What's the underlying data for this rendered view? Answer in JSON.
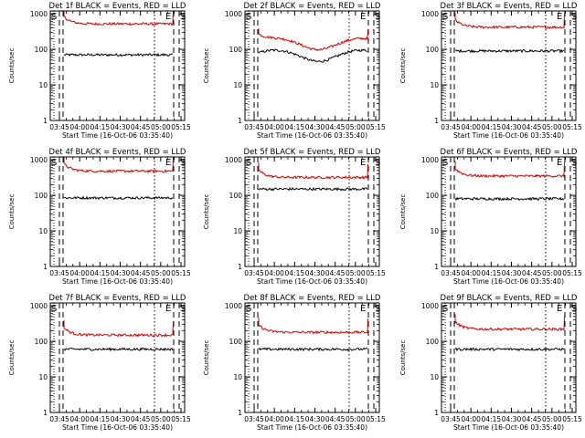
{
  "chart_data": [
    {
      "type": "line",
      "title": "Det 1f BLACK = Events, RED = LLD",
      "ylabel": "Counts/sec",
      "xlabel": "Start Time (16-Oct-06 03:35:40)",
      "x_ticks": [
        "03:45",
        "04:00",
        "04:15",
        "04:30",
        "04:45",
        "05:00",
        "05:15"
      ],
      "y_ticks": [
        "1",
        "10",
        "100",
        "1000"
      ],
      "ylim": [
        1,
        1200
      ],
      "yscale": "log",
      "markers": {
        "S": "S",
        "E": "E"
      },
      "series": [
        {
          "color": "#000000",
          "level": 70,
          "shape": "flat"
        },
        {
          "color": "#cc0000",
          "level": 520,
          "shape": "flat"
        }
      ]
    },
    {
      "type": "line",
      "title": "Det 2f BLACK = Events, RED = LLD",
      "ylabel": "Counts/sec",
      "xlabel": "Start Time (16-Oct-06 03:35:40)",
      "x_ticks": [
        "03:45",
        "04:00",
        "04:15",
        "04:30",
        "04:45",
        "05:00",
        "05:15"
      ],
      "y_ticks": [
        "1",
        "10",
        "100",
        "1000"
      ],
      "ylim": [
        1,
        1200
      ],
      "yscale": "log",
      "markers": {
        "S": "S",
        "E": "E"
      },
      "series": [
        {
          "color": "#000000",
          "level": 70,
          "shape": "wave"
        },
        {
          "color": "#cc0000",
          "level": 150,
          "shape": "wave"
        }
      ]
    },
    {
      "type": "line",
      "title": "Det 3f BLACK = Events, RED = LLD",
      "ylabel": "Counts/sec",
      "xlabel": "Start Time (16-Oct-06 03:35:40)",
      "x_ticks": [
        "03:45",
        "04:00",
        "04:15",
        "04:30",
        "04:45",
        "05:00",
        "05:15"
      ],
      "y_ticks": [
        "1",
        "10",
        "100",
        "1000"
      ],
      "ylim": [
        1,
        1200
      ],
      "yscale": "log",
      "markers": {
        "S": "S",
        "E": "E"
      },
      "series": [
        {
          "color": "#000000",
          "level": 90,
          "shape": "flat"
        },
        {
          "color": "#cc0000",
          "level": 420,
          "shape": "flat"
        }
      ]
    },
    {
      "type": "line",
      "title": "Det 4f BLACK = Events, RED = LLD",
      "ylabel": "Counts/sec",
      "xlabel": "Start Time (16-Oct-06 03:35:40)",
      "x_ticks": [
        "03:45",
        "04:00",
        "04:15",
        "04:30",
        "04:45",
        "05:00",
        "05:15"
      ],
      "y_ticks": [
        "1",
        "10",
        "100",
        "1000"
      ],
      "ylim": [
        1,
        1200
      ],
      "yscale": "log",
      "markers": {
        "S": "S",
        "E": "E"
      },
      "series": [
        {
          "color": "#000000",
          "level": 85,
          "shape": "flat"
        },
        {
          "color": "#cc0000",
          "level": 480,
          "shape": "flat"
        }
      ]
    },
    {
      "type": "line",
      "title": "Det 5f BLACK = Events, RED = LLD",
      "ylabel": "Counts/sec",
      "xlabel": "Start Time (16-Oct-06 03:35:40)",
      "x_ticks": [
        "03:45",
        "04:00",
        "04:15",
        "04:30",
        "04:45",
        "05:00",
        "05:15"
      ],
      "y_ticks": [
        "1",
        "10",
        "100",
        "1000"
      ],
      "ylim": [
        1,
        1200
      ],
      "yscale": "log",
      "markers": {
        "S": "S",
        "E": "E"
      },
      "series": [
        {
          "color": "#000000",
          "level": 150,
          "shape": "flat"
        },
        {
          "color": "#cc0000",
          "level": 320,
          "shape": "flat"
        }
      ]
    },
    {
      "type": "line",
      "title": "Det 6f BLACK = Events, RED = LLD",
      "ylabel": "Counts/sec",
      "xlabel": "Start Time (16-Oct-06 03:35:40)",
      "x_ticks": [
        "03:45",
        "04:00",
        "04:15",
        "04:30",
        "04:45",
        "05:00",
        "05:15"
      ],
      "y_ticks": [
        "1",
        "10",
        "100",
        "1000"
      ],
      "ylim": [
        1,
        1200
      ],
      "yscale": "log",
      "markers": {
        "S": "S",
        "E": "E"
      },
      "series": [
        {
          "color": "#000000",
          "level": 80,
          "shape": "flat"
        },
        {
          "color": "#cc0000",
          "level": 350,
          "shape": "flat"
        }
      ]
    },
    {
      "type": "line",
      "title": "Det 7f BLACK = Events, RED = LLD",
      "ylabel": "Counts/sec",
      "xlabel": "Start Time (16-Oct-06 03:35:40)",
      "x_ticks": [
        "03:45",
        "04:00",
        "04:15",
        "04:30",
        "04:45",
        "05:00",
        "05:15"
      ],
      "y_ticks": [
        "1",
        "10",
        "100",
        "1000"
      ],
      "ylim": [
        1,
        1200
      ],
      "yscale": "log",
      "markers": {
        "S": "S",
        "E": "E"
      },
      "series": [
        {
          "color": "#000000",
          "level": 60,
          "shape": "flat"
        },
        {
          "color": "#cc0000",
          "level": 150,
          "shape": "flat"
        }
      ]
    },
    {
      "type": "line",
      "title": "Det 8f BLACK = Events, RED = LLD",
      "ylabel": "Counts/sec",
      "xlabel": "Start Time (16-Oct-06 03:35:40)",
      "x_ticks": [
        "03:45",
        "04:00",
        "04:15",
        "04:30",
        "04:45",
        "05:00",
        "05:15"
      ],
      "y_ticks": [
        "1",
        "10",
        "100",
        "1000"
      ],
      "ylim": [
        1,
        1200
      ],
      "yscale": "log",
      "markers": {
        "S": "S",
        "E": "E"
      },
      "series": [
        {
          "color": "#000000",
          "level": 60,
          "shape": "flat"
        },
        {
          "color": "#cc0000",
          "level": 180,
          "shape": "flat"
        }
      ]
    },
    {
      "type": "line",
      "title": "Det 9f BLACK = Events, RED = LLD",
      "ylabel": "Counts/sec",
      "xlabel": "Start Time (16-Oct-06 03:35:40)",
      "x_ticks": [
        "03:45",
        "04:00",
        "04:15",
        "04:30",
        "04:45",
        "05:00",
        "05:15"
      ],
      "y_ticks": [
        "1",
        "10",
        "100",
        "1000"
      ],
      "ylim": [
        1,
        1200
      ],
      "yscale": "log",
      "markers": {
        "S": "S",
        "E": "E"
      },
      "series": [
        {
          "color": "#000000",
          "level": 60,
          "shape": "flat"
        },
        {
          "color": "#cc0000",
          "level": 220,
          "shape": "flat"
        }
      ]
    }
  ]
}
